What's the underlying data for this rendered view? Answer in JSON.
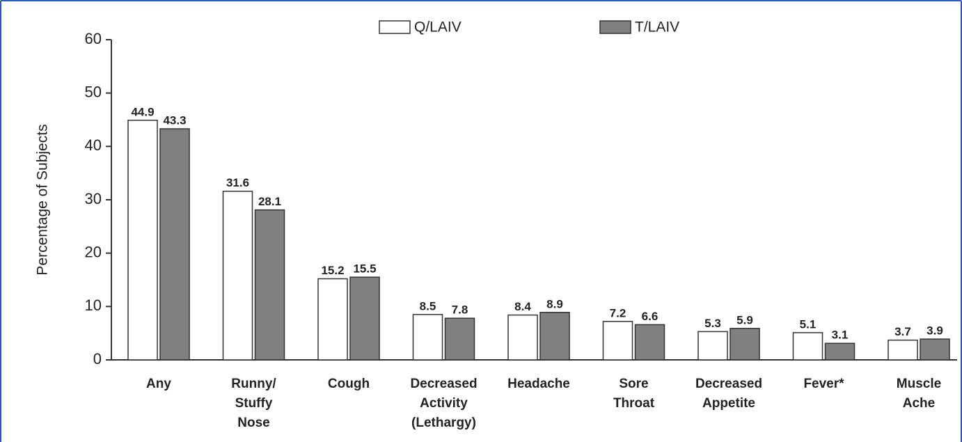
{
  "chart_data": {
    "type": "bar",
    "categories": [
      "Any",
      "Runny/ Stuffy Nose",
      "Cough",
      "Decreased Activity (Lethargy)",
      "Headache",
      "Sore Throat",
      "Decreased Appetite",
      "Fever*",
      "Muscle Ache"
    ],
    "series": [
      {
        "name": "Q/LAIV",
        "color": "#ffffff",
        "values": [
          44.9,
          31.6,
          15.2,
          8.5,
          8.4,
          7.2,
          5.3,
          5.1,
          3.7
        ]
      },
      {
        "name": "T/LAIV",
        "color": "#808080",
        "values": [
          43.3,
          28.1,
          15.5,
          7.8,
          8.9,
          6.6,
          5.9,
          3.1,
          3.9
        ]
      }
    ],
    "y_label": "Percentage of Subjects",
    "ylim": [
      0,
      60
    ],
    "yticks": [
      0,
      10,
      20,
      30,
      40,
      50,
      60
    ],
    "grid": false,
    "legend": "top"
  }
}
